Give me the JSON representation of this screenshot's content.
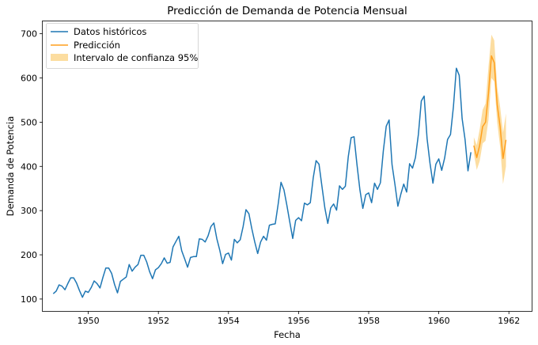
{
  "chart_data": {
    "type": "line",
    "title": "Predicción de Demanda de Potencia Mensual",
    "xlabel": "Fecha",
    "ylabel": "Demanda de Potencia",
    "xlim": [
      1948.7,
      1962.65
    ],
    "ylim": [
      73,
      728
    ],
    "xticks": [
      1950,
      1952,
      1954,
      1956,
      1958,
      1960,
      1962
    ],
    "yticks": [
      100,
      200,
      300,
      400,
      500,
      600,
      700
    ],
    "grid": false,
    "legend_position": "top-left",
    "colors": {
      "historical": "#1f77b4",
      "forecast": "#ff9f1c",
      "confidence": "#fbd78f"
    },
    "legend": [
      {
        "label": "Datos históricos",
        "kind": "line",
        "color": "#1f77b4"
      },
      {
        "label": "Predicción",
        "kind": "line",
        "color": "#ff9f1c"
      },
      {
        "label": "Intervalo de confianza 95%",
        "kind": "patch",
        "color": "#fbd78f"
      }
    ],
    "historical": {
      "name": "Datos históricos",
      "start": 1949.0,
      "step_years": 0.0833333,
      "values": [
        112,
        118,
        132,
        129,
        121,
        135,
        148,
        148,
        136,
        119,
        104,
        118,
        115,
        126,
        141,
        135,
        125,
        149,
        170,
        170,
        158,
        133,
        114,
        140,
        145,
        150,
        178,
        163,
        172,
        178,
        199,
        199,
        184,
        162,
        146,
        166,
        171,
        180,
        193,
        181,
        183,
        218,
        230,
        242,
        209,
        191,
        172,
        194,
        196,
        196,
        236,
        235,
        229,
        243,
        264,
        272,
        237,
        211,
        180,
        201,
        204,
        188,
        235,
        227,
        234,
        264,
        302,
        293,
        259,
        229,
        203,
        229,
        242,
        233,
        267,
        269,
        270,
        315,
        364,
        347,
        312,
        274,
        237,
        278,
        284,
        277,
        317,
        313,
        318,
        374,
        413,
        405,
        355,
        306,
        271,
        306,
        315,
        301,
        356,
        348,
        355,
        422,
        465,
        467,
        404,
        347,
        305,
        336,
        340,
        318,
        362,
        348,
        363,
        435,
        491,
        505,
        404,
        359,
        310,
        337,
        360,
        342,
        406,
        396,
        420,
        472,
        548,
        559,
        463,
        407,
        362,
        405,
        417,
        391,
        419,
        461,
        472,
        535,
        622,
        606,
        508,
        461,
        390,
        432
      ]
    },
    "forecast": {
      "name": "Predicción",
      "start": 1961.0,
      "step_years": 0.0833333,
      "values": [
        447,
        420,
        448,
        490,
        500,
        565,
        650,
        635,
        540,
        490,
        418,
        460
      ],
      "lower": [
        428,
        392,
        412,
        452,
        458,
        505,
        600,
        592,
        500,
        445,
        360,
        400
      ],
      "upper": [
        466,
        448,
        484,
        528,
        542,
        625,
        698,
        685,
        580,
        535,
        476,
        520
      ]
    }
  }
}
